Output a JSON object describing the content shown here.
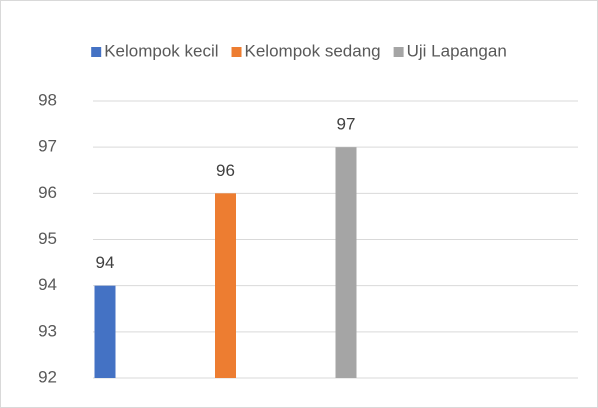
{
  "chart_data": {
    "type": "bar",
    "categories": [
      null
    ],
    "series": [
      {
        "name": "Kelompok kecil",
        "color": "#4472c4",
        "values": [
          94
        ]
      },
      {
        "name": "Kelompok sedang",
        "color": "#ed7d31",
        "values": [
          96
        ]
      },
      {
        "name": "Uji Lapangan",
        "color": "#a5a5a5",
        "values": [
          97
        ]
      }
    ],
    "ylim": [
      92,
      98
    ],
    "yticks": [
      92,
      93,
      94,
      95,
      96,
      97,
      98
    ],
    "grid": true,
    "legend": "top"
  }
}
